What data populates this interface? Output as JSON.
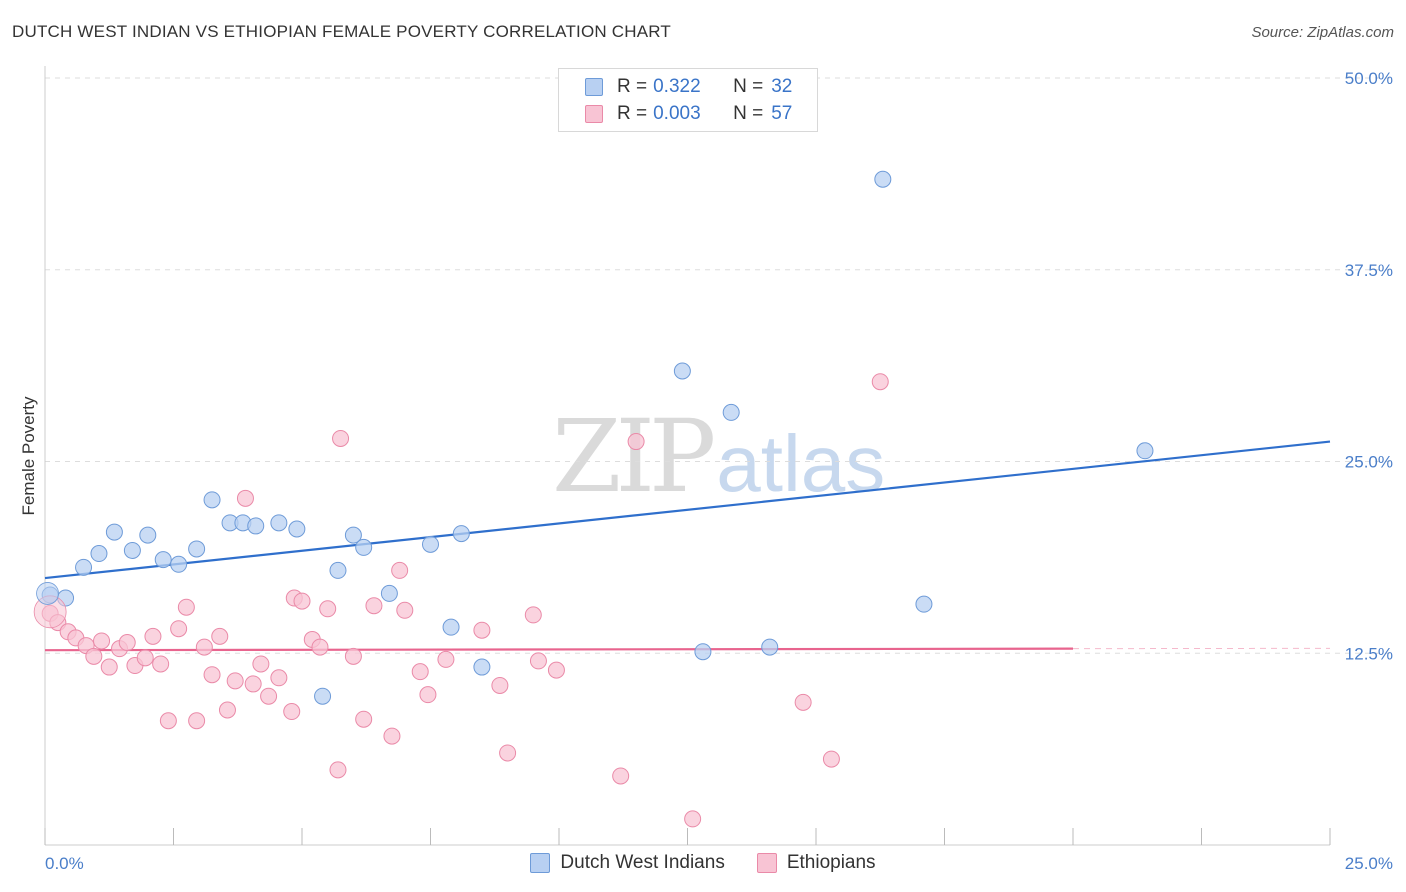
{
  "title": "DUTCH WEST INDIAN VS ETHIOPIAN FEMALE POVERTY CORRELATION CHART",
  "source": "Source: ZipAtlas.com",
  "watermark": {
    "zip": "ZIP",
    "atlas": "atlas"
  },
  "legend": {
    "rows": [
      {
        "r_label": "R =",
        "r_value": "0.322",
        "n_label": "N =",
        "n_value": "32"
      },
      {
        "r_label": "R =",
        "r_value": "0.003",
        "n_label": "N =",
        "n_value": "57"
      }
    ]
  },
  "colors": {
    "blue_fill": "#b8d0f2",
    "blue_stroke": "#6e9bd8",
    "blue_line": "#2f6fcc",
    "pink_fill": "#f8c4d4",
    "pink_stroke": "#ea8aa8",
    "pink_line": "#e8648e",
    "tick_text": "#4a7ec9",
    "grid": "#dddddd"
  },
  "chart_data": {
    "type": "scatter",
    "title": "DUTCH WEST INDIAN VS ETHIOPIAN FEMALE POVERTY CORRELATION CHART",
    "xlabel": "",
    "ylabel": "Female Poverty",
    "xlim": [
      0,
      25
    ],
    "ylim": [
      0,
      50
    ],
    "x_tick_labels": [
      "0.0%",
      "25.0%"
    ],
    "y_ticks": [
      12.5,
      25.0,
      37.5,
      50.0
    ],
    "y_tick_labels": [
      "12.5%",
      "25.0%",
      "37.5%",
      "50.0%"
    ],
    "grid": true,
    "legend_position": "top-center",
    "series": [
      {
        "name": "Dutch West Indians",
        "r": 0.322,
        "n": 32,
        "trend": {
          "x": [
            0,
            25
          ],
          "y": [
            17.4,
            26.3
          ]
        },
        "points": [
          [
            0.1,
            16.3
          ],
          [
            0.4,
            16.1
          ],
          [
            0.75,
            18.1
          ],
          [
            1.05,
            19.0
          ],
          [
            1.35,
            20.4
          ],
          [
            1.7,
            19.2
          ],
          [
            2.0,
            20.2
          ],
          [
            2.3,
            18.6
          ],
          [
            2.6,
            18.3
          ],
          [
            2.95,
            19.3
          ],
          [
            3.25,
            22.5
          ],
          [
            3.6,
            21.0
          ],
          [
            3.85,
            21.0
          ],
          [
            4.1,
            20.8
          ],
          [
            4.55,
            21.0
          ],
          [
            4.9,
            20.6
          ],
          [
            5.4,
            9.7
          ],
          [
            5.7,
            17.9
          ],
          [
            6.0,
            20.2
          ],
          [
            6.2,
            19.4
          ],
          [
            6.7,
            16.4
          ],
          [
            7.5,
            19.6
          ],
          [
            7.9,
            14.2
          ],
          [
            8.1,
            20.3
          ],
          [
            8.5,
            11.6
          ],
          [
            12.4,
            30.9
          ],
          [
            12.8,
            12.6
          ],
          [
            13.35,
            28.2
          ],
          [
            14.1,
            12.9
          ],
          [
            16.3,
            43.4
          ],
          [
            17.1,
            15.7
          ],
          [
            21.4,
            25.7
          ]
        ]
      },
      {
        "name": "Ethiopians",
        "r": 0.003,
        "n": 57,
        "trend": {
          "x": [
            0,
            20
          ],
          "y": [
            12.7,
            12.8
          ]
        },
        "points": [
          [
            0.1,
            15.1
          ],
          [
            0.25,
            14.5
          ],
          [
            0.45,
            13.9
          ],
          [
            0.6,
            13.5
          ],
          [
            0.8,
            13.0
          ],
          [
            0.95,
            12.3
          ],
          [
            1.1,
            13.3
          ],
          [
            1.25,
            11.6
          ],
          [
            1.45,
            12.8
          ],
          [
            1.6,
            13.2
          ],
          [
            1.75,
            11.7
          ],
          [
            1.95,
            12.2
          ],
          [
            2.1,
            13.6
          ],
          [
            2.25,
            11.8
          ],
          [
            2.4,
            8.1
          ],
          [
            2.6,
            14.1
          ],
          [
            2.75,
            15.5
          ],
          [
            2.95,
            8.1
          ],
          [
            3.1,
            12.9
          ],
          [
            3.25,
            11.1
          ],
          [
            3.4,
            13.6
          ],
          [
            3.55,
            8.8
          ],
          [
            3.7,
            10.7
          ],
          [
            3.9,
            22.6
          ],
          [
            4.05,
            10.5
          ],
          [
            4.2,
            11.8
          ],
          [
            4.35,
            9.7
          ],
          [
            4.55,
            10.9
          ],
          [
            4.8,
            8.7
          ],
          [
            4.85,
            16.1
          ],
          [
            5.0,
            15.9
          ],
          [
            5.2,
            13.4
          ],
          [
            5.35,
            12.9
          ],
          [
            5.5,
            15.4
          ],
          [
            5.7,
            4.9
          ],
          [
            5.75,
            26.5
          ],
          [
            6.0,
            12.3
          ],
          [
            6.2,
            8.2
          ],
          [
            6.4,
            15.6
          ],
          [
            6.75,
            7.1
          ],
          [
            6.9,
            17.9
          ],
          [
            7.0,
            15.3
          ],
          [
            7.3,
            11.3
          ],
          [
            7.45,
            9.8
          ],
          [
            7.8,
            12.1
          ],
          [
            8.5,
            14.0
          ],
          [
            8.85,
            10.4
          ],
          [
            9.0,
            6.0
          ],
          [
            9.5,
            15.0
          ],
          [
            9.6,
            12.0
          ],
          [
            9.95,
            11.4
          ],
          [
            11.2,
            4.5
          ],
          [
            11.5,
            26.3
          ],
          [
            12.6,
            1.7
          ],
          [
            14.75,
            9.3
          ],
          [
            15.3,
            5.6
          ],
          [
            16.25,
            30.2
          ]
        ]
      }
    ]
  }
}
